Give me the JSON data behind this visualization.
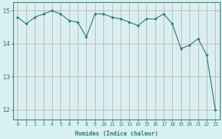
{
  "x": [
    0,
    1,
    2,
    3,
    4,
    5,
    6,
    7,
    8,
    9,
    10,
    11,
    12,
    13,
    14,
    15,
    16,
    17,
    18,
    19,
    20,
    21,
    22,
    23
  ],
  "y": [
    14.8,
    14.6,
    14.8,
    14.9,
    15.0,
    14.9,
    14.7,
    14.65,
    14.2,
    14.9,
    14.9,
    14.8,
    14.75,
    14.65,
    14.55,
    14.75,
    14.75,
    14.9,
    14.6,
    13.85,
    13.95,
    14.15,
    13.65,
    12.0
  ],
  "line_color": "#2e7d6e",
  "marker": "D",
  "marker_size": 1.8,
  "bg_color": "#d8f0f0",
  "grid_color": "#c8a8a8",
  "axis_color": "#2e7d6e",
  "xlabel": "Humidex (Indice chaleur)",
  "xlim": [
    -0.5,
    23.5
  ],
  "ylim": [
    11.7,
    15.25
  ],
  "yticks": [
    12,
    13,
    14,
    15
  ],
  "xticks": [
    0,
    1,
    2,
    3,
    4,
    5,
    6,
    7,
    8,
    9,
    10,
    11,
    12,
    13,
    14,
    15,
    16,
    17,
    18,
    19,
    20,
    21,
    22,
    23
  ],
  "tick_fontsize": 5.0,
  "ytick_fontsize": 6.5,
  "xlabel_fontsize": 6.0
}
